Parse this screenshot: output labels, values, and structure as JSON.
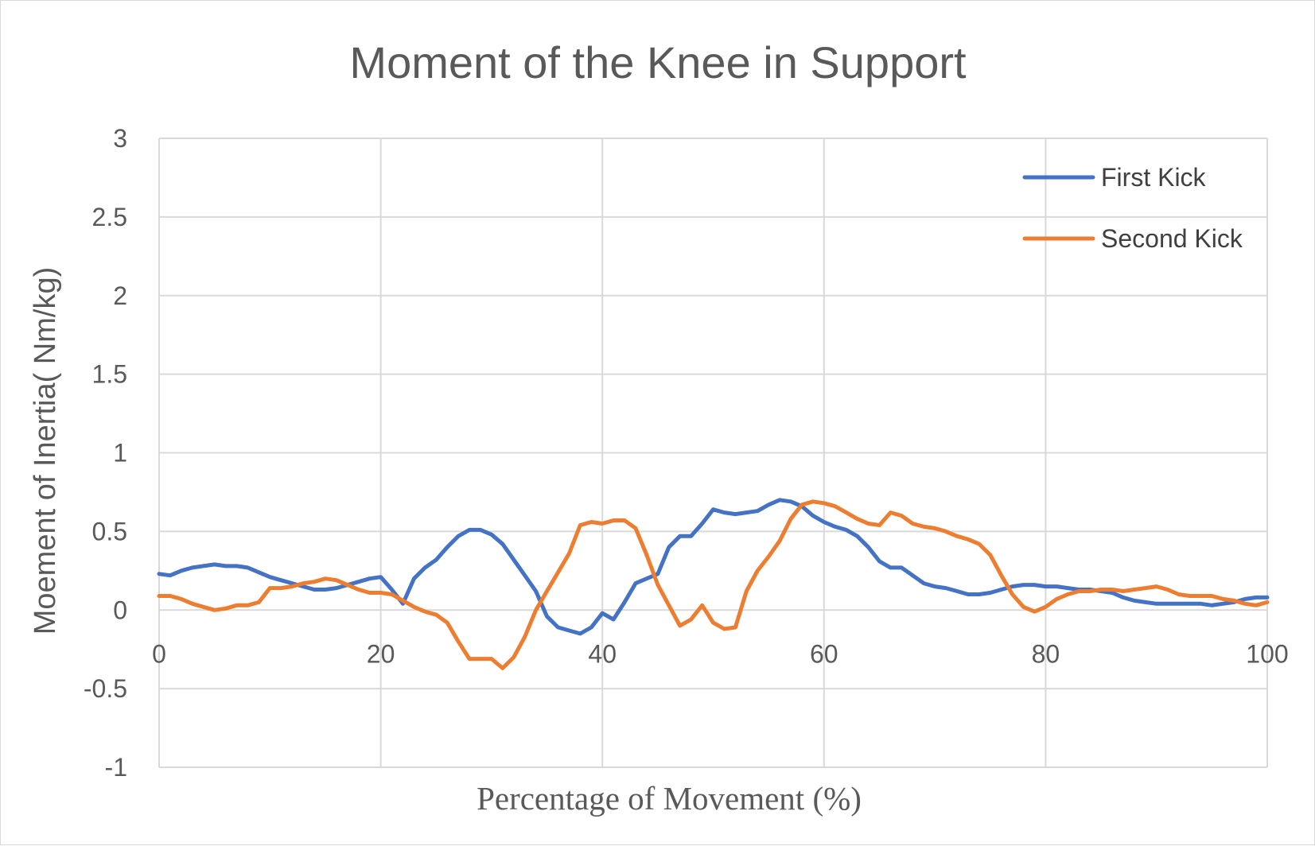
{
  "chart_data": {
    "type": "line",
    "title": "Moment of the Knee in Support",
    "xlabel": "Percentage of Movement (%)",
    "ylabel": "Moement of Inertia( Nm/kg)",
    "xlim": [
      0,
      100
    ],
    "ylim": [
      -1,
      3
    ],
    "x_ticks": [
      0,
      20,
      40,
      60,
      80,
      100
    ],
    "y_ticks": [
      3,
      2.5,
      2,
      1.5,
      1,
      0.5,
      0,
      -0.5,
      -1
    ],
    "grid": true,
    "legend_position": "top-right",
    "series": [
      {
        "name": "First Kick",
        "color": "#4472C4",
        "x": [
          0,
          1,
          2,
          3,
          4,
          5,
          6,
          7,
          8,
          9,
          10,
          11,
          12,
          13,
          14,
          15,
          16,
          17,
          18,
          19,
          20,
          21,
          22,
          23,
          24,
          25,
          26,
          27,
          28,
          29,
          30,
          31,
          32,
          33,
          34,
          35,
          36,
          37,
          38,
          39,
          40,
          41,
          42,
          43,
          44,
          45,
          46,
          47,
          48,
          49,
          50,
          51,
          52,
          53,
          54,
          55,
          56,
          57,
          58,
          59,
          60,
          61,
          62,
          63,
          64,
          65,
          66,
          67,
          68,
          69,
          70,
          71,
          72,
          73,
          74,
          75,
          76,
          77,
          78,
          79,
          80,
          81,
          82,
          83,
          84,
          85,
          86,
          87,
          88,
          89,
          90,
          91,
          92,
          93,
          94,
          95,
          96,
          97,
          98,
          99,
          100
        ],
        "y": [
          0.23,
          0.22,
          0.25,
          0.27,
          0.28,
          0.29,
          0.28,
          0.28,
          0.27,
          0.24,
          0.21,
          0.19,
          0.17,
          0.15,
          0.13,
          0.13,
          0.14,
          0.16,
          0.18,
          0.2,
          0.21,
          0.13,
          0.04,
          0.2,
          0.27,
          0.32,
          0.4,
          0.47,
          0.51,
          0.51,
          0.48,
          0.42,
          0.32,
          0.22,
          0.12,
          -0.04,
          -0.11,
          -0.13,
          -0.15,
          -0.11,
          -0.02,
          -0.06,
          0.05,
          0.17,
          0.2,
          0.23,
          0.4,
          0.47,
          0.47,
          0.55,
          0.64,
          0.62,
          0.61,
          0.62,
          0.63,
          0.67,
          0.7,
          0.69,
          0.66,
          0.6,
          0.56,
          0.53,
          0.51,
          0.47,
          0.4,
          0.31,
          0.27,
          0.27,
          0.22,
          0.17,
          0.15,
          0.14,
          0.12,
          0.1,
          0.1,
          0.11,
          0.13,
          0.15,
          0.16,
          0.16,
          0.15,
          0.15,
          0.14,
          0.13,
          0.13,
          0.12,
          0.11,
          0.08,
          0.06,
          0.05,
          0.04,
          0.04,
          0.04,
          0.04,
          0.04,
          0.03,
          0.04,
          0.05,
          0.07,
          0.08,
          0.08
        ]
      },
      {
        "name": "Second Kick",
        "color": "#ED7D31",
        "x": [
          0,
          1,
          2,
          3,
          4,
          5,
          6,
          7,
          8,
          9,
          10,
          11,
          12,
          13,
          14,
          15,
          16,
          17,
          18,
          19,
          20,
          21,
          22,
          23,
          24,
          25,
          26,
          27,
          28,
          29,
          30,
          31,
          32,
          33,
          34,
          35,
          36,
          37,
          38,
          39,
          40,
          41,
          42,
          43,
          44,
          45,
          46,
          47,
          48,
          49,
          50,
          51,
          52,
          53,
          54,
          55,
          56,
          57,
          58,
          59,
          60,
          61,
          62,
          63,
          64,
          65,
          66,
          67,
          68,
          69,
          70,
          71,
          72,
          73,
          74,
          75,
          76,
          77,
          78,
          79,
          80,
          81,
          82,
          83,
          84,
          85,
          86,
          87,
          88,
          89,
          90,
          91,
          92,
          93,
          94,
          95,
          96,
          97,
          98,
          99,
          100
        ],
        "y": [
          0.09,
          0.09,
          0.07,
          0.04,
          0.02,
          0.0,
          0.01,
          0.03,
          0.03,
          0.05,
          0.14,
          0.14,
          0.15,
          0.17,
          0.18,
          0.2,
          0.19,
          0.16,
          0.13,
          0.11,
          0.11,
          0.1,
          0.06,
          0.02,
          -0.01,
          -0.03,
          -0.08,
          -0.2,
          -0.31,
          -0.31,
          -0.31,
          -0.37,
          -0.3,
          -0.17,
          0.0,
          0.12,
          0.24,
          0.36,
          0.54,
          0.56,
          0.55,
          0.57,
          0.57,
          0.52,
          0.35,
          0.16,
          0.03,
          -0.1,
          -0.06,
          0.03,
          -0.08,
          -0.12,
          -0.11,
          0.12,
          0.25,
          0.34,
          0.44,
          0.58,
          0.67,
          0.69,
          0.68,
          0.66,
          0.62,
          0.58,
          0.55,
          0.54,
          0.62,
          0.6,
          0.55,
          0.53,
          0.52,
          0.5,
          0.47,
          0.45,
          0.42,
          0.35,
          0.22,
          0.1,
          0.02,
          -0.01,
          0.02,
          0.07,
          0.1,
          0.12,
          0.12,
          0.13,
          0.13,
          0.12,
          0.13,
          0.14,
          0.15,
          0.13,
          0.1,
          0.09,
          0.09,
          0.09,
          0.07,
          0.06,
          0.04,
          0.03,
          0.05
        ]
      }
    ]
  }
}
